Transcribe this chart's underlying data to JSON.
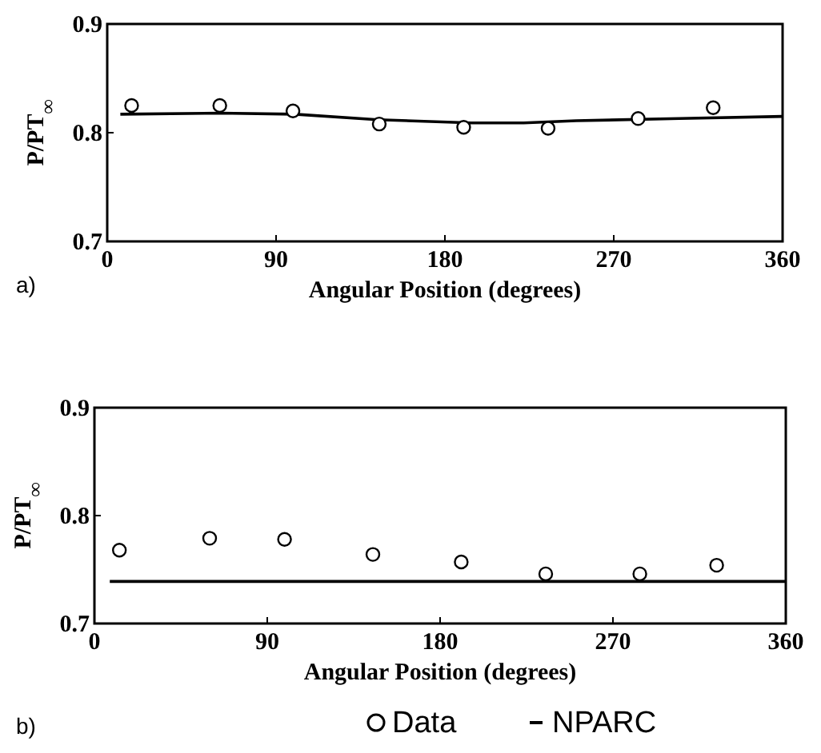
{
  "chart_data": [
    {
      "type": "scatter",
      "xlabel": "Angular Position (degrees)",
      "ylabel": "P/PT$_{∞}$",
      "xlim": [
        0,
        360
      ],
      "xticks": [
        0,
        90,
        180,
        270,
        360
      ],
      "ylim": [
        0.7,
        0.9
      ],
      "yticks": [
        0.7,
        0.8,
        0.9
      ],
      "marker": "circle",
      "legend": false,
      "grid": false,
      "annotations": [
        "a)"
      ],
      "series": [
        {
          "color": "#000000",
          "x": [
            13,
            60,
            99,
            145,
            190,
            235,
            283,
            323
          ],
          "values": [
            0.825,
            0.825,
            0.82,
            0.808,
            0.805,
            0.804,
            0.813,
            0.823
          ]
        },
        {
          "type": "line",
          "color": "#000000",
          "marker": "none",
          "x": [
            7,
            60,
            100,
            144,
            194,
            222,
            250,
            305,
            360
          ],
          "values": [
            0.817,
            0.818,
            0.817,
            0.812,
            0.809,
            0.809,
            0.811,
            0.813,
            0.815
          ]
        }
      ]
    },
    {
      "type": "scatter",
      "xlabel": "Angular Position (degrees)",
      "ylabel": "P/PT$_{∞}$",
      "xlim": [
        0,
        360
      ],
      "xticks": [
        0,
        90,
        180,
        270,
        360
      ],
      "ylim": [
        0.7,
        0.9
      ],
      "yticks": [
        0.7,
        0.8,
        0.9
      ],
      "marker": "circle",
      "legend": "bottom",
      "grid": false,
      "annotations": [
        "b)"
      ],
      "series": [
        {
          "name": "Data",
          "color": "#000000",
          "x": [
            13,
            60,
            99,
            145,
            191,
            235,
            284,
            324
          ],
          "values": [
            0.768,
            0.779,
            0.778,
            0.764,
            0.757,
            0.746,
            0.746,
            0.754
          ]
        },
        {
          "type": "line",
          "name": "NPARC",
          "color": "#000000",
          "marker": "none",
          "x": [
            8,
            360
          ],
          "values": [
            0.739,
            0.739
          ]
        }
      ]
    }
  ]
}
